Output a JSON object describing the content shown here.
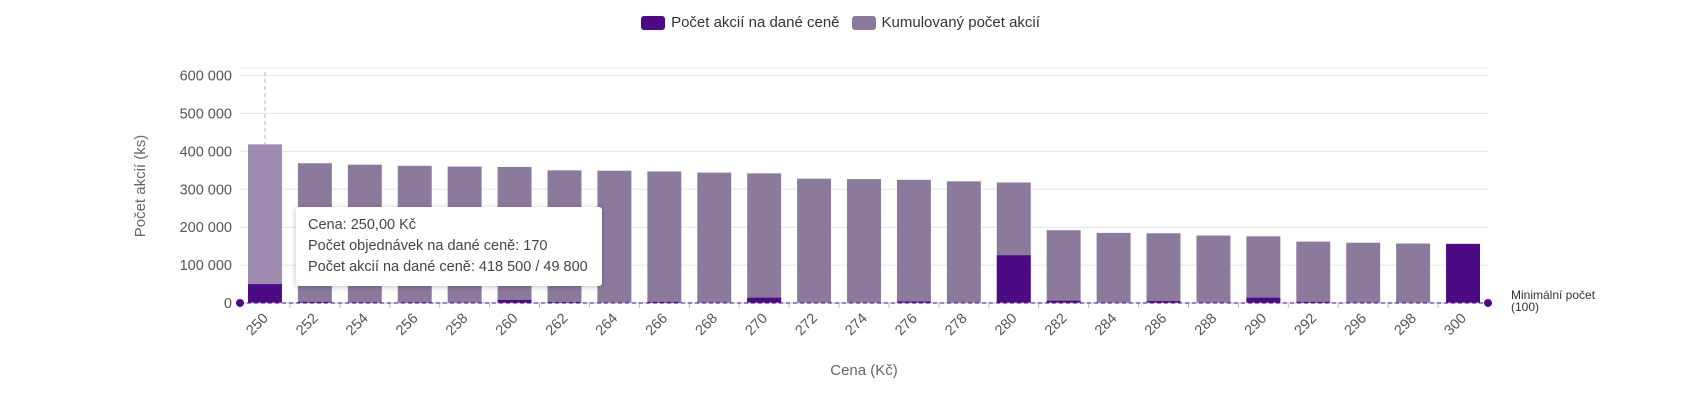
{
  "legend": {
    "items": [
      {
        "label": "Počet akcií na dané ceně",
        "color": "#4d0a85"
      },
      {
        "label": "Kumulovaný počet akcií",
        "color": "#8c7a9d"
      }
    ]
  },
  "tooltip": {
    "line1": "Cena: 250,00 Kč",
    "line2": "Počet objednávek na dané ceně: 170",
    "line3": "Počet akcií na dané ceně: 418 500 / 49 800"
  },
  "min_line": {
    "label_line1": "Minimální počet",
    "label_line2": "(100)",
    "value": 100
  },
  "chart_data": {
    "type": "bar",
    "xlabel": "Cena (Kč)",
    "ylabel": "Počet akcií (ks)",
    "ylim": [
      0,
      620000
    ],
    "yticks": [
      0,
      100000,
      200000,
      300000,
      400000,
      500000,
      600000
    ],
    "ytick_labels": [
      "0",
      "100 000",
      "200 000",
      "300 000",
      "400 000",
      "500 000",
      "600 000"
    ],
    "categories": [
      "250",
      "252",
      "254",
      "256",
      "258",
      "260",
      "262",
      "264",
      "266",
      "268",
      "270",
      "272",
      "274",
      "276",
      "278",
      "280",
      "282",
      "284",
      "286",
      "288",
      "290",
      "292",
      "296",
      "298",
      "300"
    ],
    "series": [
      {
        "name": "Kumulovaný počet akcií",
        "color": "#8c7a9d",
        "values": [
          418500,
          368700,
          365000,
          362000,
          360000,
          359000,
          350000,
          349000,
          347000,
          344000,
          342000,
          328000,
          327000,
          325000,
          321000,
          318000,
          192000,
          185000,
          184000,
          178000,
          176000,
          162000,
          159000,
          157000,
          156000
        ]
      },
      {
        "name": "Počet akcií na dané ceně",
        "color": "#4d0a85",
        "values": [
          49800,
          3000,
          2000,
          2000,
          1500,
          8000,
          2500,
          1000,
          3000,
          1500,
          14000,
          1000,
          1000,
          4000,
          1000,
          126000,
          6000,
          1000,
          5000,
          1500,
          14000,
          3000,
          1500,
          1000,
          156000
        ]
      }
    ],
    "highlight_category": "250",
    "grid": true,
    "legend_position": "top-center"
  }
}
